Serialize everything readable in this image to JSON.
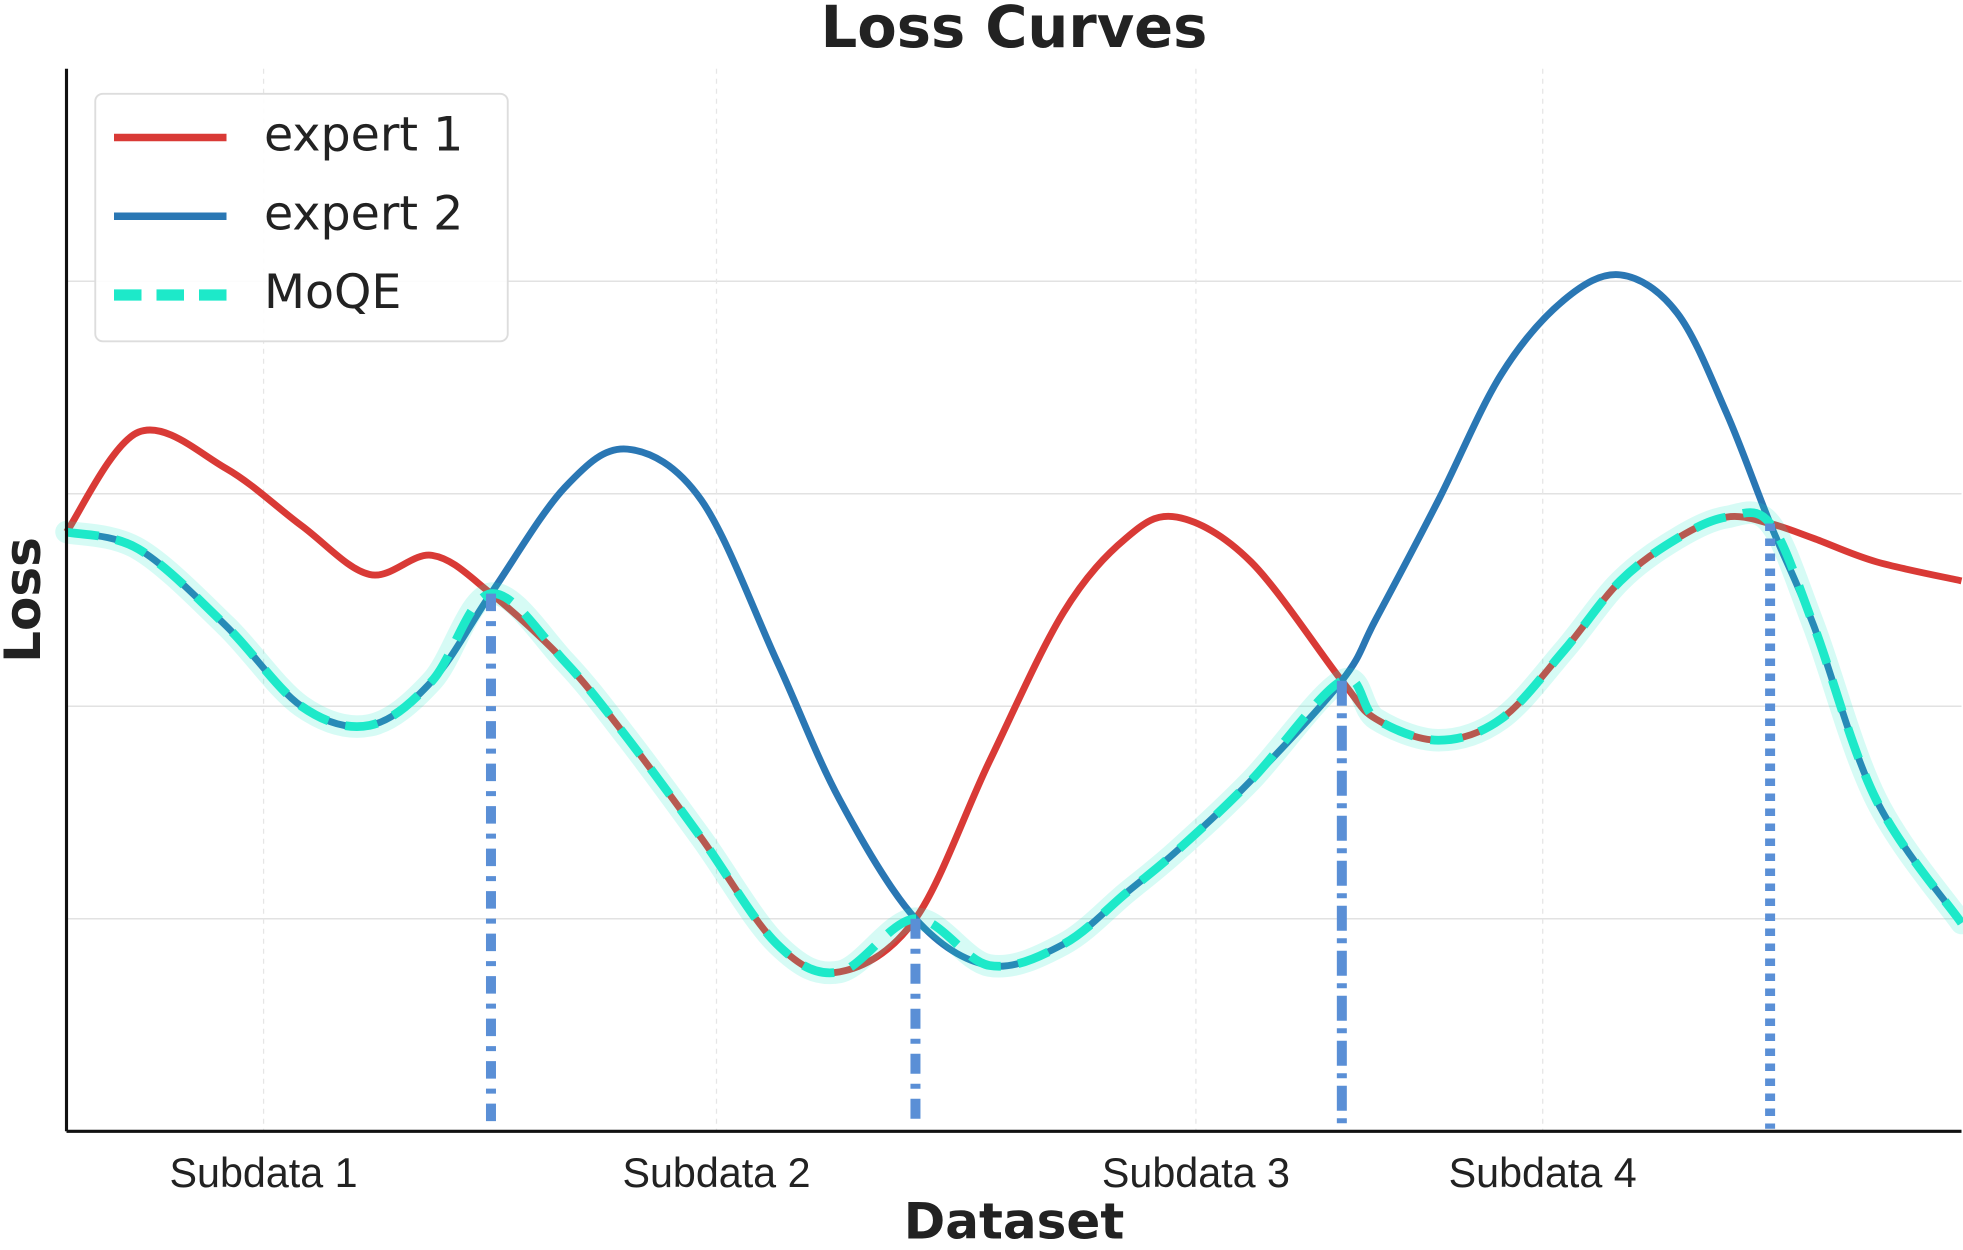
{
  "chart_data": {
    "type": "line",
    "title": "Loss Curves",
    "x_label": "Dataset",
    "y_label": "Loss",
    "x": [
      0,
      3.8,
      8.4,
      12.4,
      16.0,
      19.3,
      22.4,
      26.3,
      29.6,
      33.5,
      37.5,
      40.8,
      44.8,
      48.7,
      52.6,
      55.9,
      58.6,
      62.5,
      67.3,
      69.1,
      72.4,
      75.7,
      79.0,
      82.0,
      85.0,
      87.6,
      89.9,
      92.2,
      95.5,
      100
    ],
    "series": [
      {
        "name": "expert 1",
        "color": "#d93a36",
        "values": [
          2.82,
          3.29,
          3.12,
          2.85,
          2.62,
          2.71,
          2.53,
          2.21,
          1.85,
          1.38,
          0.88,
          0.75,
          1.0,
          1.74,
          2.44,
          2.79,
          2.89,
          2.68,
          2.12,
          1.94,
          1.84,
          1.94,
          2.26,
          2.59,
          2.79,
          2.89,
          2.86,
          2.79,
          2.68,
          2.59
        ]
      },
      {
        "name": "expert 2",
        "color": "#2a77b4",
        "values": [
          2.82,
          2.74,
          2.38,
          2.0,
          1.91,
          2.12,
          2.53,
          3.03,
          3.21,
          2.97,
          2.21,
          1.56,
          1.0,
          0.78,
          0.88,
          1.12,
          1.32,
          1.65,
          2.12,
          2.41,
          2.97,
          3.56,
          3.91,
          4.03,
          3.85,
          3.38,
          2.86,
          2.38,
          1.56,
          0.98
        ]
      },
      {
        "name": "MoQE",
        "color": "#1de9c9",
        "dashed": true,
        "values": [
          2.82,
          2.74,
          2.38,
          2.0,
          1.91,
          2.12,
          2.53,
          2.21,
          1.85,
          1.38,
          0.88,
          0.75,
          1.0,
          0.78,
          0.88,
          1.12,
          1.32,
          1.65,
          2.12,
          1.94,
          1.84,
          1.94,
          2.26,
          2.59,
          2.79,
          2.89,
          2.86,
          2.38,
          1.56,
          0.98
        ]
      }
    ],
    "xlim": [
      0,
      100
    ],
    "xticks": [
      {
        "value": 10.4,
        "label": "Subdata 1"
      },
      {
        "value": 34.3,
        "label": "Subdata 2"
      },
      {
        "value": 59.6,
        "label": "Subdata 3"
      },
      {
        "value": 77.9,
        "label": "Subdata 4"
      }
    ],
    "ylim": [
      0,
      5
    ],
    "yticks": [
      1,
      2,
      3,
      4
    ],
    "grid": true,
    "legend": "upper left"
  }
}
